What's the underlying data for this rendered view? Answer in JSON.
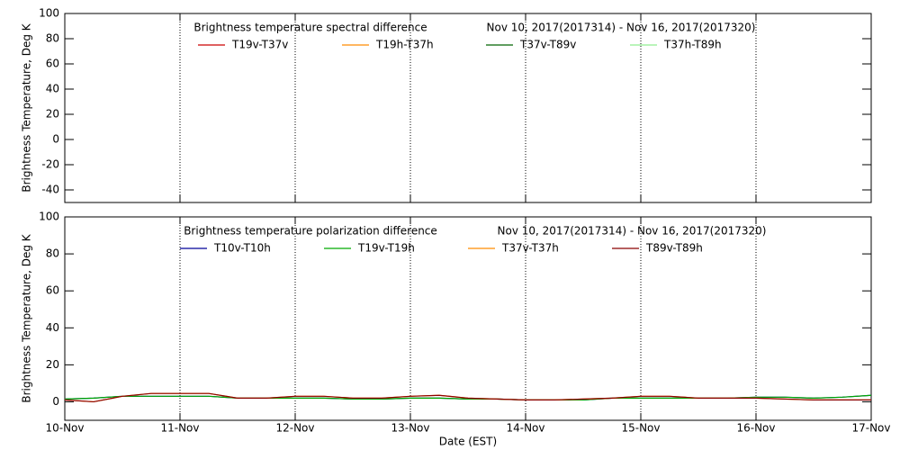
{
  "chart_data": [
    {
      "type": "line",
      "title": "Brightness temperature spectral difference",
      "subtitle": "Nov 10, 2017(2017314) - Nov 16, 2017(2017320)",
      "y_label": "Brightness Temperature, Deg K",
      "ylim": [
        -50,
        100
      ],
      "yticks": [
        -40,
        -20,
        0,
        20,
        40,
        60,
        80,
        100
      ],
      "series": [
        {
          "name": "T19v-T37v",
          "color": "#cc0000"
        },
        {
          "name": "T19h-T37h",
          "color": "#ff8c00"
        },
        {
          "name": "T37v-T89v",
          "color": "#006400"
        },
        {
          "name": "T37h-T89h",
          "color": "#90ee90"
        }
      ]
    },
    {
      "type": "line",
      "title": "Brightness temperature polarization difference",
      "subtitle": "Nov 10, 2017(2017314) - Nov 16, 2017(2017320)",
      "y_label": "Brightness Temperature, Deg K",
      "x_label": "Date (EST)",
      "xlim": [
        10,
        17
      ],
      "xticks": [
        {
          "value": 10,
          "label": "10-Nov"
        },
        {
          "value": 11,
          "label": "11-Nov"
        },
        {
          "value": 12,
          "label": "12-Nov"
        },
        {
          "value": 13,
          "label": "13-Nov"
        },
        {
          "value": 14,
          "label": "14-Nov"
        },
        {
          "value": 15,
          "label": "15-Nov"
        },
        {
          "value": 16,
          "label": "16-Nov"
        },
        {
          "value": 17,
          "label": "17-Nov"
        }
      ],
      "ylim": [
        -10,
        100
      ],
      "yticks": [
        0,
        20,
        40,
        60,
        80,
        100
      ],
      "x": [
        10,
        10.25,
        10.5,
        10.75,
        11,
        11.25,
        11.5,
        11.75,
        12,
        12.25,
        12.5,
        12.75,
        13,
        13.25,
        13.5,
        13.75,
        14,
        14.25,
        14.5,
        14.75,
        15,
        15.25,
        15.5,
        15.75,
        16,
        16.25,
        16.5,
        16.75,
        17
      ],
      "series": [
        {
          "name": "T10v-T10h",
          "color": "#000099",
          "values": [
            1.5,
            2,
            3,
            3,
            3,
            3,
            2,
            2,
            2,
            2,
            1.5,
            1.5,
            2,
            2,
            1.5,
            1.5,
            1,
            1,
            1,
            2,
            2,
            2,
            2,
            2,
            2.5,
            2.5,
            2,
            2.5,
            3.5
          ]
        },
        {
          "name": "T19v-T19h",
          "color": "#00aa00",
          "values": [
            1.5,
            2,
            3,
            3,
            3,
            3,
            2,
            2,
            2,
            2,
            1.5,
            1.5,
            2,
            2,
            1.5,
            1.5,
            1,
            1,
            1,
            2,
            2,
            2,
            2,
            2,
            2.5,
            2.5,
            2,
            2.5,
            3.5
          ]
        },
        {
          "name": "T37v-T37h",
          "color": "#ff8c00",
          "values": [
            1,
            0,
            3,
            4.5,
            4.5,
            4.5,
            2,
            2,
            3,
            3,
            2,
            2,
            3,
            3.5,
            2,
            1.5,
            1,
            1,
            1.5,
            2,
            3,
            3,
            2,
            2,
            2,
            1.5,
            1,
            1,
            1
          ]
        },
        {
          "name": "T89v-T89h",
          "color": "#8b0000",
          "values": [
            1,
            0,
            3,
            4.5,
            4.5,
            4.5,
            2,
            2,
            3,
            3,
            2,
            2,
            3,
            3.5,
            2,
            1.5,
            1,
            1,
            1.5,
            2,
            3,
            3,
            2,
            2,
            2,
            1.5,
            1,
            1,
            1
          ]
        }
      ]
    }
  ]
}
